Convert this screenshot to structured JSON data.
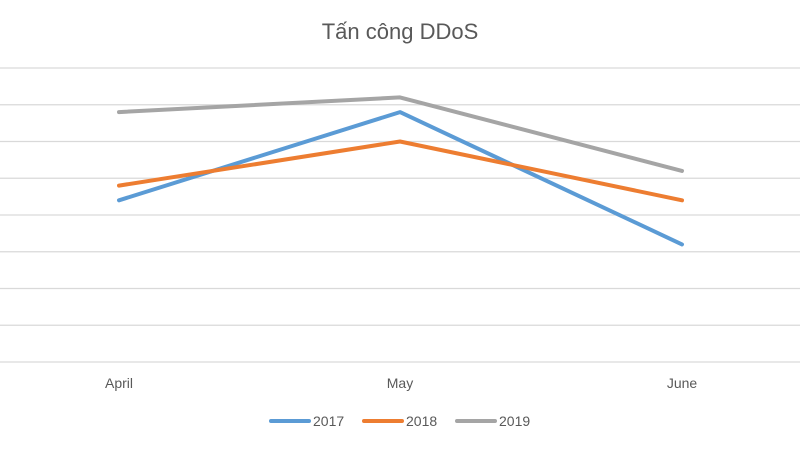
{
  "chart_data": {
    "type": "line",
    "title": "Tấn công DDoS",
    "xlabel": "",
    "ylabel": "",
    "categories": [
      "April",
      "May",
      "June"
    ],
    "ylim": [
      0,
      8
    ],
    "grid": true,
    "legend": "bottom",
    "series": [
      {
        "name": "2017",
        "color": "#5b9bd5",
        "values": [
          4.4,
          6.8,
          3.2
        ]
      },
      {
        "name": "2018",
        "color": "#ed7d31",
        "values": [
          4.8,
          6.0,
          4.4
        ]
      },
      {
        "name": "2019",
        "color": "#a5a5a5",
        "values": [
          6.8,
          7.2,
          5.2
        ]
      }
    ]
  }
}
